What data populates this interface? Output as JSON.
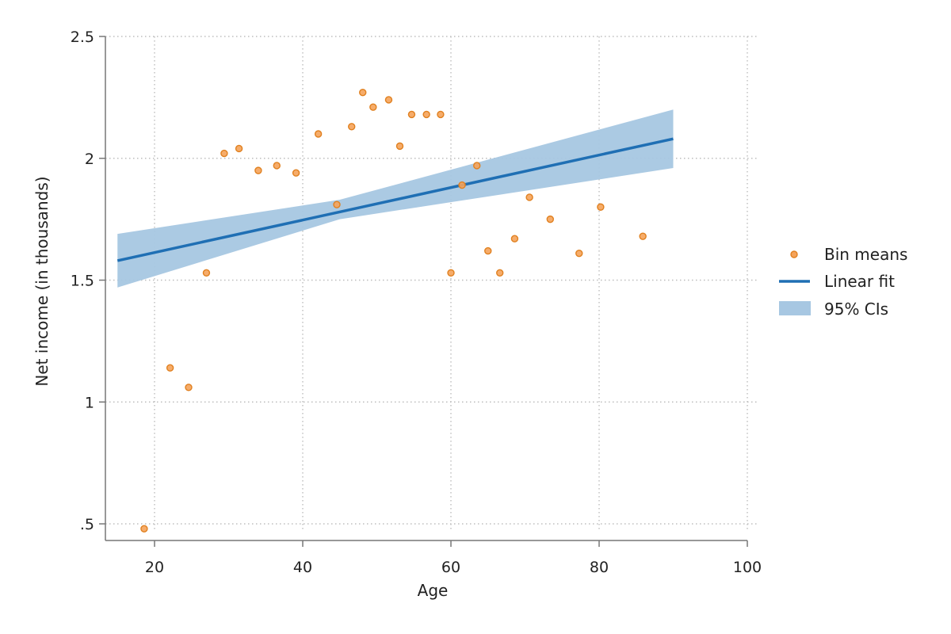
{
  "chart_data": {
    "type": "scatter",
    "xlabel": "Age",
    "ylabel": "Net income (in thousands)",
    "xlim": [
      14,
      100
    ],
    "ylim": [
      0.45,
      2.55
    ],
    "x_ticks": [
      20,
      40,
      60,
      80,
      100
    ],
    "x_tick_labels": [
      "20",
      "40",
      "60",
      "80",
      "100"
    ],
    "y_ticks": [
      0.5,
      1,
      1.5,
      2,
      2.5
    ],
    "y_tick_labels": [
      ".5",
      "1",
      "1.5",
      "2",
      "2.5"
    ],
    "grid": true,
    "legend_position": "right",
    "series": [
      {
        "name": "Bin means",
        "kind": "scatter",
        "points": [
          [
            18.6,
            0.48
          ],
          [
            22.1,
            1.14
          ],
          [
            24.6,
            1.06
          ],
          [
            27.0,
            1.53
          ],
          [
            29.4,
            2.02
          ],
          [
            31.4,
            2.04
          ],
          [
            34.0,
            1.95
          ],
          [
            36.5,
            1.97
          ],
          [
            39.1,
            1.94
          ],
          [
            42.1,
            2.1
          ],
          [
            44.6,
            1.81
          ],
          [
            46.6,
            2.13
          ],
          [
            48.1,
            2.27
          ],
          [
            49.5,
            2.21
          ],
          [
            51.6,
            2.24
          ],
          [
            53.1,
            2.05
          ],
          [
            54.7,
            2.18
          ],
          [
            56.7,
            2.18
          ],
          [
            58.6,
            2.18
          ],
          [
            60.0,
            1.53
          ],
          [
            61.5,
            1.89
          ],
          [
            63.5,
            1.97
          ],
          [
            65.0,
            1.62
          ],
          [
            66.6,
            1.53
          ],
          [
            68.6,
            1.67
          ],
          [
            70.6,
            1.84
          ],
          [
            73.4,
            1.75
          ],
          [
            77.3,
            1.61
          ],
          [
            80.2,
            1.8
          ],
          [
            85.9,
            1.68
          ]
        ]
      },
      {
        "name": "Linear fit",
        "kind": "line",
        "points": [
          [
            15,
            1.58
          ],
          [
            90,
            2.08
          ]
        ]
      },
      {
        "name": "95% CIs",
        "kind": "band",
        "x": [
          15,
          45,
          90
        ],
        "lower": [
          1.47,
          1.75,
          1.96
        ],
        "upper": [
          1.69,
          1.83,
          2.2
        ]
      }
    ],
    "colors": {
      "scatter_fill": "#f5a35a",
      "scatter_stroke": "#e0801f",
      "line": "#1f6fb4",
      "band": "#a7c7e2",
      "axis": "#777777",
      "grid": "#bdbdbd"
    }
  }
}
